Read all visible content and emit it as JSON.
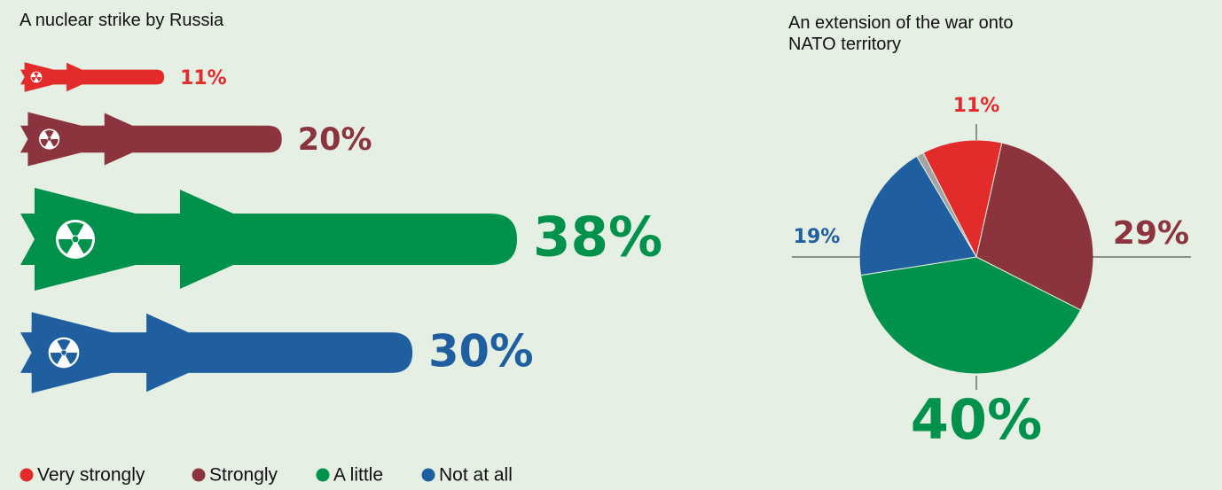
{
  "legend": {
    "items": [
      {
        "name": "Very strongly",
        "color": "#e32b2b"
      },
      {
        "name": "Strongly",
        "color": "#8c343d"
      },
      {
        "name": "A little",
        "color": "#00914b"
      },
      {
        "name": "Not at all",
        "color": "#1f5fa0"
      }
    ]
  },
  "chart_data": [
    {
      "type": "missile",
      "title": "A nuclear strike by Russia",
      "values": [
        11,
        20,
        38,
        30
      ],
      "value_labels": [
        "11%",
        "20%",
        "38%",
        "30%"
      ],
      "colors": [
        "#e32b2b",
        "#8c343d",
        "#00914b",
        "#1f5fa0"
      ]
    },
    {
      "type": "pie",
      "title": "An extension of the war onto NATO territory",
      "values": [
        11,
        29,
        40,
        19,
        1
      ],
      "value_labels": [
        "11%",
        "29%",
        "40%",
        "19%",
        null
      ],
      "colors": [
        "#e32b2b",
        "#8c343d",
        "#00914b",
        "#1f5fa0",
        "#a3a3a3"
      ]
    }
  ]
}
